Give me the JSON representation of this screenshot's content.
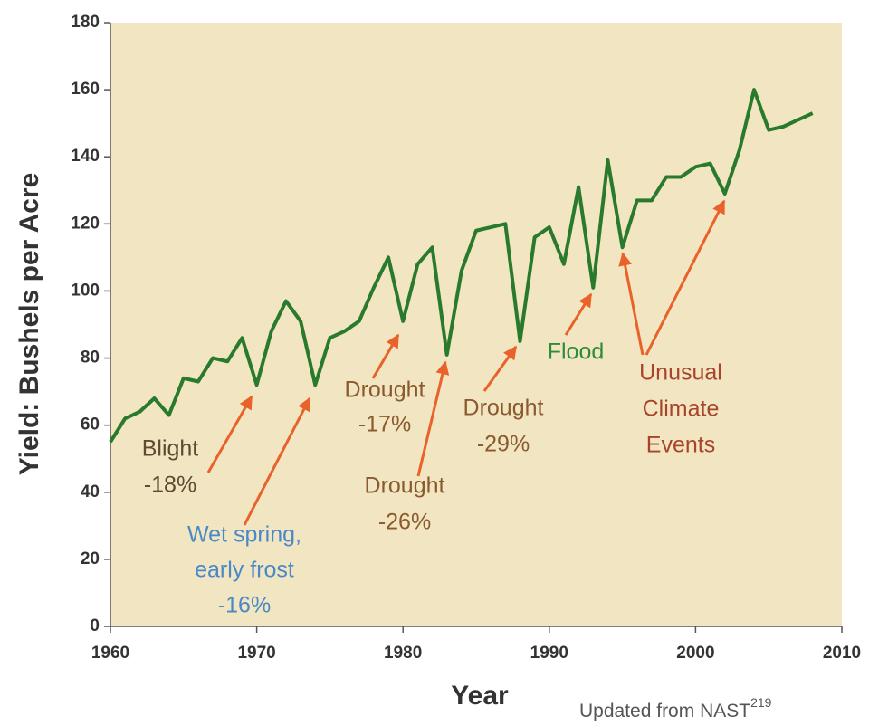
{
  "chart_data": {
    "type": "line",
    "xlabel": "Year",
    "ylabel": "Yield: Bushels per Acre",
    "source": "Updated from NAST",
    "source_ref": "219",
    "x": [
      1960,
      1961,
      1962,
      1963,
      1964,
      1965,
      1966,
      1967,
      1968,
      1969,
      1970,
      1971,
      1972,
      1973,
      1974,
      1975,
      1976,
      1977,
      1978,
      1979,
      1980,
      1981,
      1982,
      1983,
      1984,
      1985,
      1986,
      1987,
      1988,
      1989,
      1990,
      1991,
      1992,
      1993,
      1994,
      1995,
      1996,
      1997,
      1998,
      1999,
      2000,
      2001,
      2002,
      2003,
      2004,
      2005,
      2006,
      2007,
      2008
    ],
    "series": [
      {
        "color": "#2a7a2e",
        "values": [
          55,
          62,
          64,
          68,
          63,
          74,
          73,
          80,
          79,
          86,
          72,
          88,
          97,
          91,
          72,
          86,
          88,
          91,
          101,
          110,
          91,
          108,
          113,
          81,
          106,
          118,
          119,
          120,
          85,
          116,
          119,
          108,
          131,
          101,
          139,
          113,
          127,
          127,
          134,
          134,
          137,
          138,
          129,
          142,
          160,
          148,
          149,
          151,
          153
        ]
      }
    ],
    "xlim": [
      1960,
      2010
    ],
    "xticks": [
      1960,
      1970,
      1980,
      1990,
      2000,
      2010
    ],
    "ylim": [
      0,
      180
    ],
    "yticks": [
      0,
      20,
      40,
      60,
      80,
      100,
      120,
      140,
      160,
      180
    ],
    "background": "#f2e6c2",
    "arrow_color": "#e8622a",
    "annotations": [
      {
        "lines": [
          "Blight",
          "-18%"
        ],
        "color": "#5e4a33"
      },
      {
        "lines": [
          "Wet spring,",
          "early frost",
          "-16%"
        ],
        "color": "#4a88c8"
      },
      {
        "lines": [
          "Drought",
          "-17%"
        ],
        "color": "#8a5a2e"
      },
      {
        "lines": [
          "Drought",
          "-26%"
        ],
        "color": "#8a5a2e"
      },
      {
        "lines": [
          "Drought",
          "-29%"
        ],
        "color": "#8a5a2e"
      },
      {
        "lines": [
          "Flood"
        ],
        "color": "#2e8b3a"
      },
      {
        "lines": [
          "Unusual",
          "Climate",
          "Events"
        ],
        "color": "#a8442c"
      }
    ]
  }
}
